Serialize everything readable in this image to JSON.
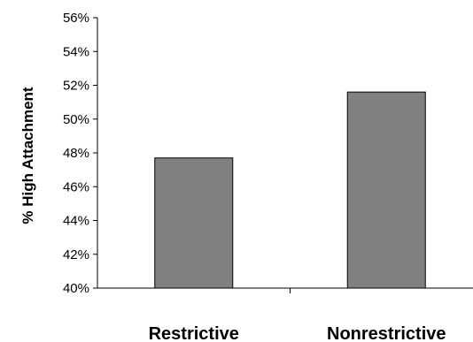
{
  "chart_data": {
    "type": "bar",
    "ylabel": "% High Attachment",
    "xlabel": "",
    "categories": [
      "Restrictive",
      "Nonrestrictive"
    ],
    "values": [
      47.7,
      51.6
    ],
    "ylim": [
      40,
      56
    ],
    "yticks": [
      40,
      42,
      44,
      46,
      48,
      50,
      52,
      54,
      56
    ],
    "ytick_labels": [
      "40%",
      "42%",
      "44%",
      "46%",
      "48%",
      "50%",
      "52%",
      "54%",
      "56%"
    ],
    "grid": false,
    "legend": "none",
    "bar_color": "#808080"
  }
}
